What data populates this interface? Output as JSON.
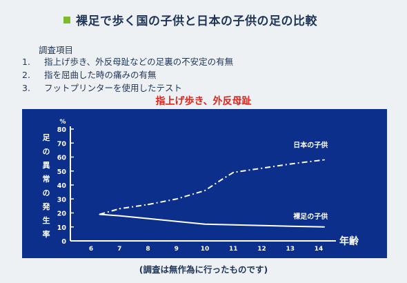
{
  "header": {
    "title": "裸足で歩く国の子供と日本の子供の足の比較"
  },
  "survey": {
    "heading": "調査項目",
    "items": [
      {
        "num": "1.",
        "text": "指上げ歩き、外反母趾などの足裏の不安定の有無"
      },
      {
        "num": "2.",
        "text": "指を屈曲した時の痛みの有無"
      },
      {
        "num": "3.",
        "text": "フットプリンターを使用したテスト"
      }
    ]
  },
  "caption": "指上げ歩き、外反母趾",
  "footnote": "(調査は無作為に行ったものです)",
  "colors": {
    "panel": "#0d2f8c",
    "caption": "#e2231a",
    "line": "#ffffff",
    "bullet": "#7dbb2a"
  },
  "chart_data": {
    "type": "line",
    "ylabel": "足の異常の発生率",
    "xlabel": "年齢",
    "y_unit": "%",
    "x_ticks": [
      "6",
      "7",
      "8",
      "9",
      "10",
      "11",
      "12",
      "13",
      "14"
    ],
    "y_ticks": [
      "0",
      "10",
      "20",
      "30",
      "40",
      "50",
      "60",
      "70",
      "80"
    ],
    "xlim": [
      6,
      14
    ],
    "ylim": [
      0,
      80
    ],
    "grid": false,
    "series": [
      {
        "name": "日本の子供",
        "style": "dash-dot",
        "x": [
          6.3,
          7,
          8,
          9,
          10,
          10.6,
          11,
          12,
          13,
          14.2
        ],
        "y": [
          19,
          23,
          26,
          30,
          36,
          44,
          49,
          52,
          55,
          58
        ]
      },
      {
        "name": "裸足の子供",
        "style": "solid",
        "x": [
          6.3,
          7,
          8,
          9,
          10,
          11,
          12,
          13,
          14.2
        ],
        "y": [
          19,
          18,
          16,
          14,
          12,
          11.5,
          11,
          10.5,
          10
        ]
      }
    ]
  }
}
